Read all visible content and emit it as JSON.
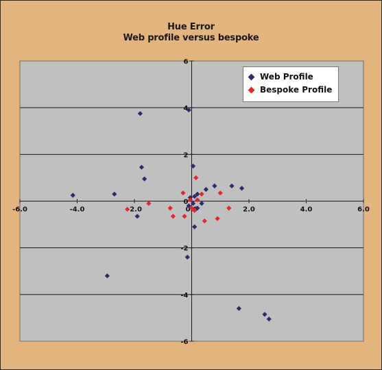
{
  "chart_data": {
    "type": "scatter",
    "title": "Hue Error",
    "subtitle": "Web profile versus bespoke",
    "xlim": [
      -6,
      6
    ],
    "ylim": [
      -6,
      6
    ],
    "x_ticks": [
      "-6.0",
      "-4.0",
      "-2.0",
      "0.0",
      "2.0",
      "4.0",
      "6.0"
    ],
    "y_ticks": [
      "6",
      "4",
      "2",
      "0",
      "-2",
      "-4",
      "-6"
    ],
    "grid": true,
    "legend_position": "top-right",
    "series": [
      {
        "name": "Web Profile",
        "color": "#2e2a6e",
        "points": [
          [
            -4.15,
            0.25
          ],
          [
            -2.7,
            0.3
          ],
          [
            -2.95,
            -3.2
          ],
          [
            -1.8,
            3.75
          ],
          [
            -1.75,
            1.45
          ],
          [
            -1.65,
            0.95
          ],
          [
            -1.9,
            -0.65
          ],
          [
            -0.1,
            3.9
          ],
          [
            0.05,
            1.5
          ],
          [
            -0.15,
            -2.4
          ],
          [
            -0.05,
            0.15
          ],
          [
            0.1,
            0.2
          ],
          [
            0.2,
            0.3
          ],
          [
            -0.1,
            -0.2
          ],
          [
            0.05,
            -0.1
          ],
          [
            0.2,
            -0.3
          ],
          [
            0.1,
            -1.1
          ],
          [
            0.35,
            -0.1
          ],
          [
            0.5,
            0.5
          ],
          [
            0.8,
            0.65
          ],
          [
            1.4,
            0.65
          ],
          [
            1.75,
            0.55
          ],
          [
            1.65,
            -4.6
          ],
          [
            2.55,
            -4.85
          ],
          [
            2.7,
            -5.05
          ]
        ]
      },
      {
        "name": "Bespoke Profile",
        "color": "#e8232b",
        "points": [
          [
            -2.25,
            -0.35
          ],
          [
            -1.5,
            -0.1
          ],
          [
            -0.75,
            -0.3
          ],
          [
            -0.65,
            -0.65
          ],
          [
            -0.3,
            0.35
          ],
          [
            -0.25,
            -0.65
          ],
          [
            -0.05,
            0.05
          ],
          [
            0.0,
            -0.3
          ],
          [
            0.15,
            1.0
          ],
          [
            0.2,
            0.05
          ],
          [
            0.35,
            0.3
          ],
          [
            0.45,
            -0.85
          ],
          [
            1.0,
            0.35
          ],
          [
            0.9,
            -0.75
          ],
          [
            1.3,
            -0.3
          ],
          [
            0.1,
            -0.4
          ]
        ]
      }
    ]
  }
}
